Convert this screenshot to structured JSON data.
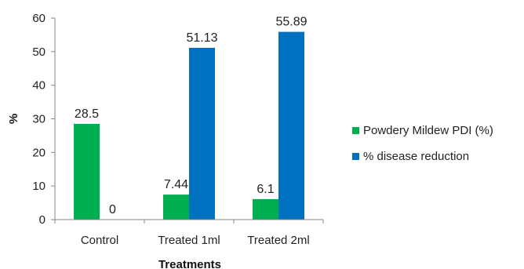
{
  "chart_data": {
    "type": "bar",
    "categories": [
      "Control",
      "Treated 1ml",
      "Treated 2ml"
    ],
    "series": [
      {
        "name": "Powdery Mildew PDI  (%)",
        "values": [
          28.5,
          7.44,
          6.1
        ],
        "labels": [
          "28.5",
          "7.44",
          "6.1"
        ],
        "color": "#00B050"
      },
      {
        "name": "% disease reduction",
        "values": [
          0,
          51.13,
          55.89
        ],
        "labels": [
          "0",
          "51.13",
          "55.89"
        ],
        "color": "#0070C0"
      }
    ],
    "title": "",
    "xlabel": "Treatments",
    "ylabel": "%",
    "ylim": [
      0,
      60
    ],
    "yticks": [
      0,
      10,
      20,
      30,
      40,
      50,
      60
    ],
    "grid": false,
    "legend_position": "right"
  }
}
